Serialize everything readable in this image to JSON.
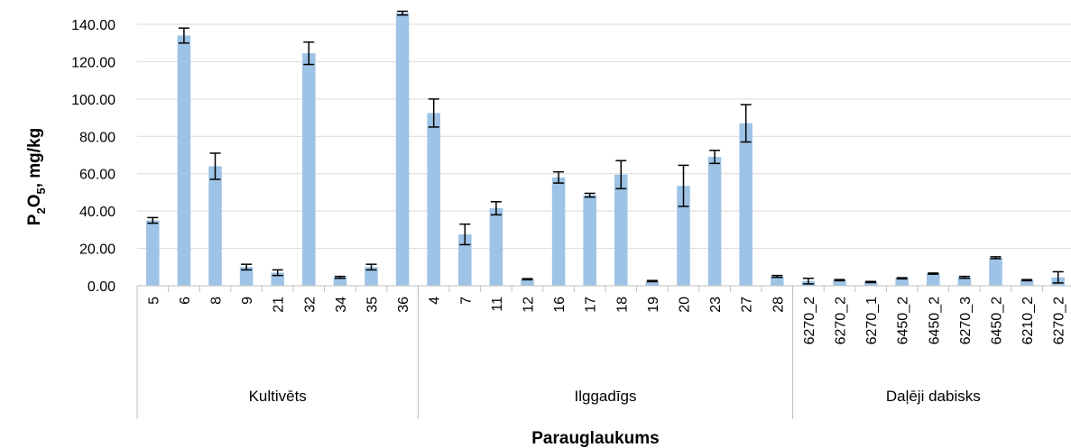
{
  "chart_data": {
    "type": "bar",
    "ylabel_main": "P",
    "ylabel_sub1": "2",
    "ylabel_mid": "O",
    "ylabel_sub2": "5",
    "ylabel_tail": ", mg/kg",
    "xlabel": "Parauglaukums",
    "ylim": [
      0,
      140
    ],
    "yticks": [
      "0.00",
      "20.00",
      "40.00",
      "60.00",
      "80.00",
      "100.00",
      "120.00",
      "140.00"
    ],
    "grid": true,
    "bar_color": "#9dc3e6",
    "groups": [
      {
        "name": "Kultivēts",
        "start": 0,
        "count": 9
      },
      {
        "name": "Ilggadīgs",
        "start": 9,
        "count": 12
      },
      {
        "name": "Daļēji dabisks",
        "start": 21,
        "count": 9
      }
    ],
    "categories": [
      "5",
      "6",
      "8",
      "9",
      "21",
      "32",
      "34",
      "35",
      "36",
      "4",
      "7",
      "11",
      "12",
      "16",
      "17",
      "18",
      "19",
      "20",
      "23",
      "27",
      "28",
      "6270_2",
      "6270_2",
      "6270_1",
      "6450_2",
      "6450_2",
      "6270_3",
      "6450_2",
      "6210_2",
      "6270_2"
    ],
    "values": [
      35,
      134,
      64,
      10,
      7,
      124.5,
      4.5,
      10,
      146,
      92.5,
      27.5,
      41.5,
      3.5,
      58,
      48.5,
      59.5,
      2.5,
      53.5,
      69,
      87,
      5,
      2.5,
      3,
      2,
      4,
      6.5,
      4.5,
      15,
      3,
      4.5
    ],
    "errors": [
      1.5,
      4,
      7,
      1.5,
      1.5,
      6,
      0.5,
      1.5,
      1,
      7.5,
      5.5,
      3.5,
      0.3,
      3,
      1,
      7.5,
      0.3,
      11,
      3.5,
      10,
      0.5,
      1.5,
      0.3,
      0.3,
      0.3,
      0.3,
      0.5,
      0.5,
      0.3,
      3
    ]
  }
}
